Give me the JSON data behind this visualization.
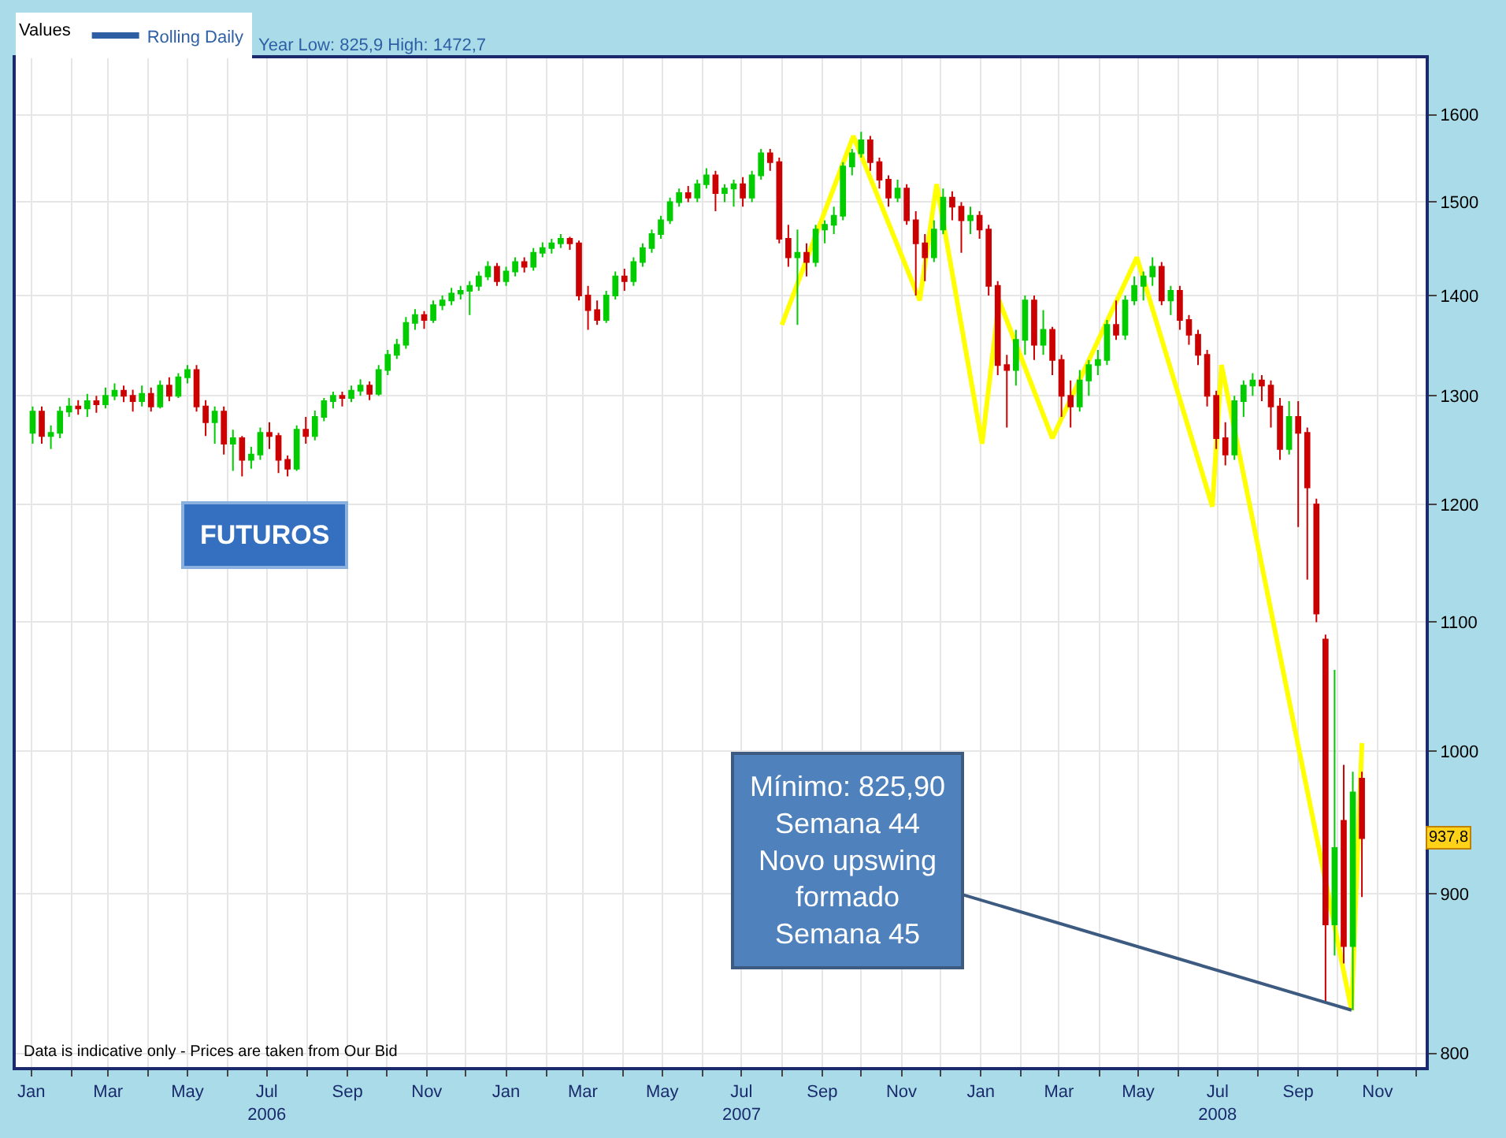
{
  "chart_data": {
    "type": "candlestick",
    "legend_title": "Values",
    "annotations": [
      "Year Low: 825,9 High: 1472,7",
      "FUTUROS",
      {
        "text": "Mínimo: 825,90\nSemana 44\nNovo upswing\nformado\nSemana 45",
        "x": "2008-10-12",
        "y": 826
      },
      "937,8",
      "Data is indicative only - Prices are taken from Our Bid"
    ],
    "x": [
      "2006-01-02",
      "2006-01-09",
      "2006-01-16",
      "2006-01-23",
      "2006-01-30",
      "2006-02-06",
      "2006-02-13",
      "2006-02-20",
      "2006-02-27",
      "2006-03-06",
      "2006-03-13",
      "2006-03-20",
      "2006-03-27",
      "2006-04-03",
      "2006-04-10",
      "2006-04-17",
      "2006-04-24",
      "2006-05-01",
      "2006-05-08",
      "2006-05-15",
      "2006-05-22",
      "2006-05-29",
      "2006-06-05",
      "2006-06-12",
      "2006-06-19",
      "2006-06-26",
      "2006-07-03",
      "2006-07-10",
      "2006-07-17",
      "2006-07-24",
      "2006-07-31",
      "2006-08-07",
      "2006-08-14",
      "2006-08-21",
      "2006-08-28",
      "2006-09-04",
      "2006-09-11",
      "2006-09-18",
      "2006-09-25",
      "2006-10-02",
      "2006-10-09",
      "2006-10-16",
      "2006-10-23",
      "2006-10-30",
      "2006-11-06",
      "2006-11-13",
      "2006-11-20",
      "2006-11-27",
      "2006-12-04",
      "2006-12-11",
      "2006-12-18",
      "2006-12-25",
      "2007-01-01",
      "2007-01-08",
      "2007-01-15",
      "2007-01-22",
      "2007-01-29",
      "2007-02-05",
      "2007-02-12",
      "2007-02-19",
      "2007-02-26",
      "2007-03-05",
      "2007-03-12",
      "2007-03-19",
      "2007-03-26",
      "2007-04-02",
      "2007-04-09",
      "2007-04-16",
      "2007-04-23",
      "2007-04-30",
      "2007-05-07",
      "2007-05-14",
      "2007-05-21",
      "2007-05-28",
      "2007-06-04",
      "2007-06-11",
      "2007-06-18",
      "2007-06-25",
      "2007-07-02",
      "2007-07-09",
      "2007-07-16",
      "2007-07-23",
      "2007-07-30",
      "2007-08-06",
      "2007-08-13",
      "2007-08-20",
      "2007-08-27",
      "2007-09-03",
      "2007-09-10",
      "2007-09-17",
      "2007-09-24",
      "2007-10-01",
      "2007-10-08",
      "2007-10-15",
      "2007-10-22",
      "2007-10-29",
      "2007-11-05",
      "2007-11-12",
      "2007-11-19",
      "2007-11-26",
      "2007-12-03",
      "2007-12-10",
      "2007-12-17",
      "2007-12-24",
      "2007-12-31",
      "2008-01-07",
      "2008-01-14",
      "2008-01-21",
      "2008-01-28",
      "2008-02-04",
      "2008-02-11",
      "2008-02-18",
      "2008-02-25",
      "2008-03-03",
      "2008-03-10",
      "2008-03-17",
      "2008-03-24",
      "2008-03-31",
      "2008-04-07",
      "2008-04-14",
      "2008-04-21",
      "2008-04-28",
      "2008-05-05",
      "2008-05-12",
      "2008-05-19",
      "2008-05-26",
      "2008-06-02",
      "2008-06-09",
      "2008-06-16",
      "2008-06-23",
      "2008-06-30",
      "2008-07-07",
      "2008-07-14",
      "2008-07-21",
      "2008-07-28",
      "2008-08-04",
      "2008-08-11",
      "2008-08-18",
      "2008-08-25",
      "2008-09-01",
      "2008-09-08",
      "2008-09-15",
      "2008-09-22",
      "2008-09-29",
      "2008-10-06",
      "2008-10-13",
      "2008-10-20"
    ],
    "series": [
      {
        "name": "Rolling Daily",
        "color": "#2e5fa5",
        "colors": [
          "#00cc00",
          "#cc0000",
          "#00cc00",
          "#00cc00",
          "#00cc00",
          "#cc0000",
          "#00cc00",
          "#cc0000",
          "#00cc00",
          "#00cc00",
          "#cc0000",
          "#cc0000",
          "#00cc00",
          "#cc0000",
          "#00cc00",
          "#cc0000",
          "#00cc00",
          "#00cc00",
          "#cc0000",
          "#cc0000",
          "#00cc00",
          "#cc0000",
          "#00cc00",
          "#cc0000",
          "#00cc00",
          "#00cc00",
          "#cc0000",
          "#cc0000",
          "#cc0000",
          "#00cc00",
          "#cc0000",
          "#00cc00",
          "#00cc00",
          "#00cc00",
          "#cc0000",
          "#00cc00",
          "#00cc00",
          "#cc0000",
          "#00cc00",
          "#00cc00",
          "#00cc00",
          "#00cc00",
          "#00cc00",
          "#cc0000",
          "#00cc00",
          "#00cc00",
          "#00cc00",
          "#00cc00",
          "#00cc00",
          "#00cc00",
          "#00cc00",
          "#cc0000",
          "#00cc00",
          "#00cc00",
          "#cc0000",
          "#00cc00",
          "#00cc00",
          "#00cc00",
          "#00cc00",
          "#cc0000",
          "#cc0000",
          "#cc0000",
          "#cc0000",
          "#00cc00",
          "#00cc00",
          "#cc0000",
          "#00cc00",
          "#00cc00",
          "#00cc00",
          "#00cc00",
          "#00cc00",
          "#00cc00",
          "#cc0000",
          "#00cc00",
          "#00cc00",
          "#cc0000",
          "#00cc00",
          "#00cc00",
          "#cc0000",
          "#00cc00",
          "#00cc00",
          "#cc0000",
          "#cc0000",
          "#cc0000",
          "#00cc00",
          "#cc0000",
          "#00cc00",
          "#00cc00",
          "#00cc00",
          "#00cc00",
          "#00cc00",
          "#00cc00",
          "#cc0000",
          "#cc0000",
          "#cc0000",
          "#00cc00",
          "#cc0000",
          "#cc0000",
          "#cc0000",
          "#00cc00",
          "#00cc00",
          "#cc0000",
          "#cc0000",
          "#00cc00",
          "#cc0000",
          "#cc0000",
          "#cc0000",
          "#cc0000",
          "#00cc00",
          "#00cc00",
          "#cc0000",
          "#00cc00",
          "#cc0000",
          "#cc0000",
          "#cc0000",
          "#00cc00",
          "#00cc00",
          "#00cc00",
          "#00cc00",
          "#cc0000",
          "#00cc00",
          "#00cc00",
          "#00cc00",
          "#00cc00",
          "#cc0000",
          "#00cc00",
          "#cc0000",
          "#cc0000",
          "#cc0000",
          "#cc0000",
          "#cc0000",
          "#cc0000",
          "#00cc00",
          "#00cc00",
          "#00cc00",
          "#cc0000",
          "#cc0000",
          "#cc0000",
          "#00cc00",
          "#cc0000",
          "#cc0000",
          "#cc0000",
          "#cc0000",
          "#00cc00",
          "#cc0000",
          "#00cc00",
          "#cc0000"
        ],
        "ohlc": [
          [
            1265,
            1290,
            1255,
            1285
          ],
          [
            1285,
            1290,
            1255,
            1262
          ],
          [
            1262,
            1272,
            1250,
            1265
          ],
          [
            1265,
            1290,
            1260,
            1285
          ],
          [
            1285,
            1298,
            1280,
            1290
          ],
          [
            1290,
            1296,
            1282,
            1288
          ],
          [
            1288,
            1302,
            1280,
            1295
          ],
          [
            1295,
            1300,
            1284,
            1292
          ],
          [
            1292,
            1308,
            1288,
            1300
          ],
          [
            1300,
            1312,
            1296,
            1305
          ],
          [
            1305,
            1310,
            1294,
            1300
          ],
          [
            1300,
            1306,
            1285,
            1295
          ],
          [
            1295,
            1310,
            1290,
            1302
          ],
          [
            1302,
            1308,
            1285,
            1290
          ],
          [
            1290,
            1315,
            1288,
            1310
          ],
          [
            1310,
            1318,
            1295,
            1300
          ],
          [
            1300,
            1322,
            1298,
            1318
          ],
          [
            1318,
            1330,
            1312,
            1325
          ],
          [
            1325,
            1330,
            1285,
            1290
          ],
          [
            1290,
            1296,
            1262,
            1275
          ],
          [
            1275,
            1290,
            1255,
            1285
          ],
          [
            1285,
            1290,
            1245,
            1255
          ],
          [
            1255,
            1268,
            1230,
            1260
          ],
          [
            1260,
            1262,
            1225,
            1240
          ],
          [
            1240,
            1252,
            1232,
            1245
          ],
          [
            1245,
            1270,
            1240,
            1265
          ],
          [
            1265,
            1275,
            1250,
            1262
          ],
          [
            1262,
            1265,
            1228,
            1240
          ],
          [
            1240,
            1244,
            1225,
            1232
          ],
          [
            1232,
            1272,
            1230,
            1268
          ],
          [
            1268,
            1280,
            1255,
            1262
          ],
          [
            1262,
            1286,
            1258,
            1280
          ],
          [
            1280,
            1298,
            1276,
            1295
          ],
          [
            1295,
            1304,
            1288,
            1300
          ],
          [
            1300,
            1304,
            1290,
            1298
          ],
          [
            1298,
            1310,
            1294,
            1305
          ],
          [
            1305,
            1316,
            1300,
            1310
          ],
          [
            1310,
            1314,
            1296,
            1302
          ],
          [
            1302,
            1330,
            1300,
            1325
          ],
          [
            1325,
            1345,
            1320,
            1340
          ],
          [
            1340,
            1356,
            1336,
            1350
          ],
          [
            1350,
            1378,
            1346,
            1372
          ],
          [
            1372,
            1386,
            1365,
            1380
          ],
          [
            1380,
            1384,
            1366,
            1375
          ],
          [
            1375,
            1395,
            1372,
            1390
          ],
          [
            1390,
            1400,
            1385,
            1395
          ],
          [
            1395,
            1408,
            1390,
            1402
          ],
          [
            1402,
            1410,
            1396,
            1405
          ],
          [
            1405,
            1415,
            1380,
            1410
          ],
          [
            1410,
            1425,
            1405,
            1420
          ],
          [
            1420,
            1436,
            1416,
            1430
          ],
          [
            1430,
            1434,
            1410,
            1415
          ],
          [
            1415,
            1430,
            1410,
            1425
          ],
          [
            1425,
            1440,
            1420,
            1435
          ],
          [
            1435,
            1440,
            1424,
            1430
          ],
          [
            1430,
            1450,
            1426,
            1445
          ],
          [
            1445,
            1456,
            1440,
            1450
          ],
          [
            1450,
            1460,
            1444,
            1455
          ],
          [
            1455,
            1465,
            1450,
            1460
          ],
          [
            1460,
            1462,
            1448,
            1455
          ],
          [
            1455,
            1458,
            1395,
            1400
          ],
          [
            1400,
            1410,
            1365,
            1385
          ],
          [
            1385,
            1395,
            1370,
            1375
          ],
          [
            1375,
            1405,
            1372,
            1400
          ],
          [
            1400,
            1425,
            1396,
            1420
          ],
          [
            1420,
            1428,
            1405,
            1415
          ],
          [
            1415,
            1440,
            1410,
            1435
          ],
          [
            1435,
            1455,
            1430,
            1450
          ],
          [
            1450,
            1470,
            1445,
            1465
          ],
          [
            1465,
            1485,
            1460,
            1480
          ],
          [
            1480,
            1505,
            1476,
            1500
          ],
          [
            1500,
            1515,
            1495,
            1510
          ],
          [
            1510,
            1518,
            1500,
            1505
          ],
          [
            1505,
            1525,
            1500,
            1520
          ],
          [
            1520,
            1538,
            1515,
            1530
          ],
          [
            1530,
            1535,
            1490,
            1510
          ],
          [
            1510,
            1520,
            1500,
            1515
          ],
          [
            1515,
            1525,
            1495,
            1520
          ],
          [
            1520,
            1528,
            1495,
            1505
          ],
          [
            1505,
            1535,
            1500,
            1530
          ],
          [
            1530,
            1560,
            1525,
            1555
          ],
          [
            1555,
            1560,
            1535,
            1545
          ],
          [
            1545,
            1550,
            1455,
            1460
          ],
          [
            1460,
            1475,
            1430,
            1440
          ],
          [
            1440,
            1470,
            1370,
            1445
          ],
          [
            1445,
            1455,
            1420,
            1435
          ],
          [
            1435,
            1475,
            1430,
            1470
          ],
          [
            1470,
            1480,
            1455,
            1475
          ],
          [
            1475,
            1495,
            1465,
            1485
          ],
          [
            1485,
            1545,
            1480,
            1540
          ],
          [
            1540,
            1560,
            1530,
            1555
          ],
          [
            1555,
            1580,
            1550,
            1570
          ],
          [
            1570,
            1575,
            1535,
            1545
          ],
          [
            1545,
            1550,
            1515,
            1525
          ],
          [
            1525,
            1530,
            1495,
            1505
          ],
          [
            1505,
            1525,
            1500,
            1515
          ],
          [
            1515,
            1520,
            1475,
            1480
          ],
          [
            1480,
            1490,
            1400,
            1455
          ],
          [
            1455,
            1465,
            1415,
            1440
          ],
          [
            1440,
            1480,
            1435,
            1470
          ],
          [
            1470,
            1515,
            1465,
            1505
          ],
          [
            1505,
            1512,
            1480,
            1495
          ],
          [
            1495,
            1500,
            1445,
            1480
          ],
          [
            1480,
            1495,
            1465,
            1485
          ],
          [
            1485,
            1490,
            1460,
            1470
          ],
          [
            1470,
            1475,
            1400,
            1410
          ],
          [
            1410,
            1415,
            1320,
            1330
          ],
          [
            1330,
            1340,
            1270,
            1325
          ],
          [
            1325,
            1365,
            1310,
            1355
          ],
          [
            1355,
            1400,
            1340,
            1395
          ],
          [
            1395,
            1400,
            1335,
            1350
          ],
          [
            1350,
            1385,
            1340,
            1365
          ],
          [
            1365,
            1368,
            1320,
            1335
          ],
          [
            1335,
            1340,
            1280,
            1300
          ],
          [
            1300,
            1315,
            1270,
            1290
          ],
          [
            1290,
            1325,
            1285,
            1315
          ],
          [
            1315,
            1335,
            1300,
            1330
          ],
          [
            1330,
            1345,
            1320,
            1335
          ],
          [
            1335,
            1375,
            1330,
            1370
          ],
          [
            1370,
            1395,
            1355,
            1360
          ],
          [
            1360,
            1400,
            1355,
            1395
          ],
          [
            1395,
            1420,
            1390,
            1410
          ],
          [
            1410,
            1425,
            1395,
            1420
          ],
          [
            1420,
            1440,
            1410,
            1430
          ],
          [
            1430,
            1435,
            1390,
            1395
          ],
          [
            1395,
            1410,
            1380,
            1405
          ],
          [
            1405,
            1410,
            1365,
            1375
          ],
          [
            1375,
            1380,
            1350,
            1360
          ],
          [
            1360,
            1365,
            1330,
            1340
          ],
          [
            1340,
            1345,
            1290,
            1300
          ],
          [
            1300,
            1305,
            1250,
            1260
          ],
          [
            1260,
            1275,
            1235,
            1245
          ],
          [
            1245,
            1300,
            1240,
            1295
          ],
          [
            1295,
            1315,
            1280,
            1310
          ],
          [
            1310,
            1322,
            1300,
            1315
          ],
          [
            1315,
            1320,
            1295,
            1310
          ],
          [
            1310,
            1315,
            1270,
            1290
          ],
          [
            1290,
            1298,
            1240,
            1250
          ],
          [
            1250,
            1295,
            1245,
            1280
          ],
          [
            1280,
            1295,
            1180,
            1265
          ],
          [
            1265,
            1270,
            1135,
            1215
          ],
          [
            1200,
            1205,
            1100,
            1107
          ],
          [
            1086,
            1090,
            831,
            880
          ],
          [
            880,
            1062,
            860,
            931
          ],
          [
            950,
            990,
            855,
            866
          ],
          [
            866,
            985,
            826,
            970
          ],
          [
            980,
            985,
            898,
            937.8
          ]
        ]
      },
      {
        "type": "line",
        "color": "#ffff00",
        "x": [
          "2007-08-01",
          "2007-09-25",
          "2007-11-15",
          "2007-11-28",
          "2008-01-02",
          "2008-01-15",
          "2008-02-25",
          "2008-04-30",
          "2008-06-27",
          "2008-07-04",
          "2008-10-12",
          "2008-10-20"
        ],
        "values": [
          1370,
          1575,
          1395,
          1520,
          1255,
          1395,
          1260,
          1440,
          1198,
          1330,
          826,
          1006
        ]
      }
    ],
    "xlim": [
      "2005-12-20",
      "2008-12-08"
    ],
    "xticks": [
      {
        "value": "2006-01-01",
        "label": "Jan"
      },
      {
        "value": "2006-02-01",
        "label": null
      },
      {
        "value": "2006-03-01",
        "label": "Mar"
      },
      {
        "value": "2006-04-01",
        "label": null
      },
      {
        "value": "2006-05-01",
        "label": "May"
      },
      {
        "value": "2006-06-01",
        "label": null
      },
      {
        "value": "2006-07-01",
        "label": "Jul\n2006"
      },
      {
        "value": "2006-08-01",
        "label": null
      },
      {
        "value": "2006-09-01",
        "label": "Sep"
      },
      {
        "value": "2006-10-01",
        "label": null
      },
      {
        "value": "2006-11-01",
        "label": "Nov"
      },
      {
        "value": "2006-12-01",
        "label": null
      },
      {
        "value": "2007-01-01",
        "label": "Jan"
      },
      {
        "value": "2007-02-01",
        "label": null
      },
      {
        "value": "2007-03-01",
        "label": "Mar"
      },
      {
        "value": "2007-04-01",
        "label": null
      },
      {
        "value": "2007-05-01",
        "label": "May"
      },
      {
        "value": "2007-06-01",
        "label": null
      },
      {
        "value": "2007-07-01",
        "label": "Jul\n2007"
      },
      {
        "value": "2007-08-01",
        "label": null
      },
      {
        "value": "2007-09-01",
        "label": "Sep"
      },
      {
        "value": "2007-10-01",
        "label": null
      },
      {
        "value": "2007-11-01",
        "label": "Nov"
      },
      {
        "value": "2007-12-01",
        "label": null
      },
      {
        "value": "2008-01-01",
        "label": "Jan"
      },
      {
        "value": "2008-02-01",
        "label": null
      },
      {
        "value": "2008-03-01",
        "label": "Mar"
      },
      {
        "value": "2008-04-01",
        "label": null
      },
      {
        "value": "2008-05-01",
        "label": "May"
      },
      {
        "value": "2008-06-01",
        "label": null
      },
      {
        "value": "2008-07-01",
        "label": "Jul\n2008"
      },
      {
        "value": "2008-08-01",
        "label": null
      },
      {
        "value": "2008-09-01",
        "label": "Sep"
      },
      {
        "value": "2008-10-01",
        "label": null
      },
      {
        "value": "2008-11-01",
        "label": "Nov"
      },
      {
        "value": "2008-12-01",
        "label": null
      }
    ],
    "ylim": [
      792,
      1668
    ],
    "yticks": [
      800,
      900,
      1000,
      1100,
      1200,
      1300,
      1400,
      1500,
      1600
    ],
    "log": "y",
    "grid": true,
    "legend": "top left"
  }
}
